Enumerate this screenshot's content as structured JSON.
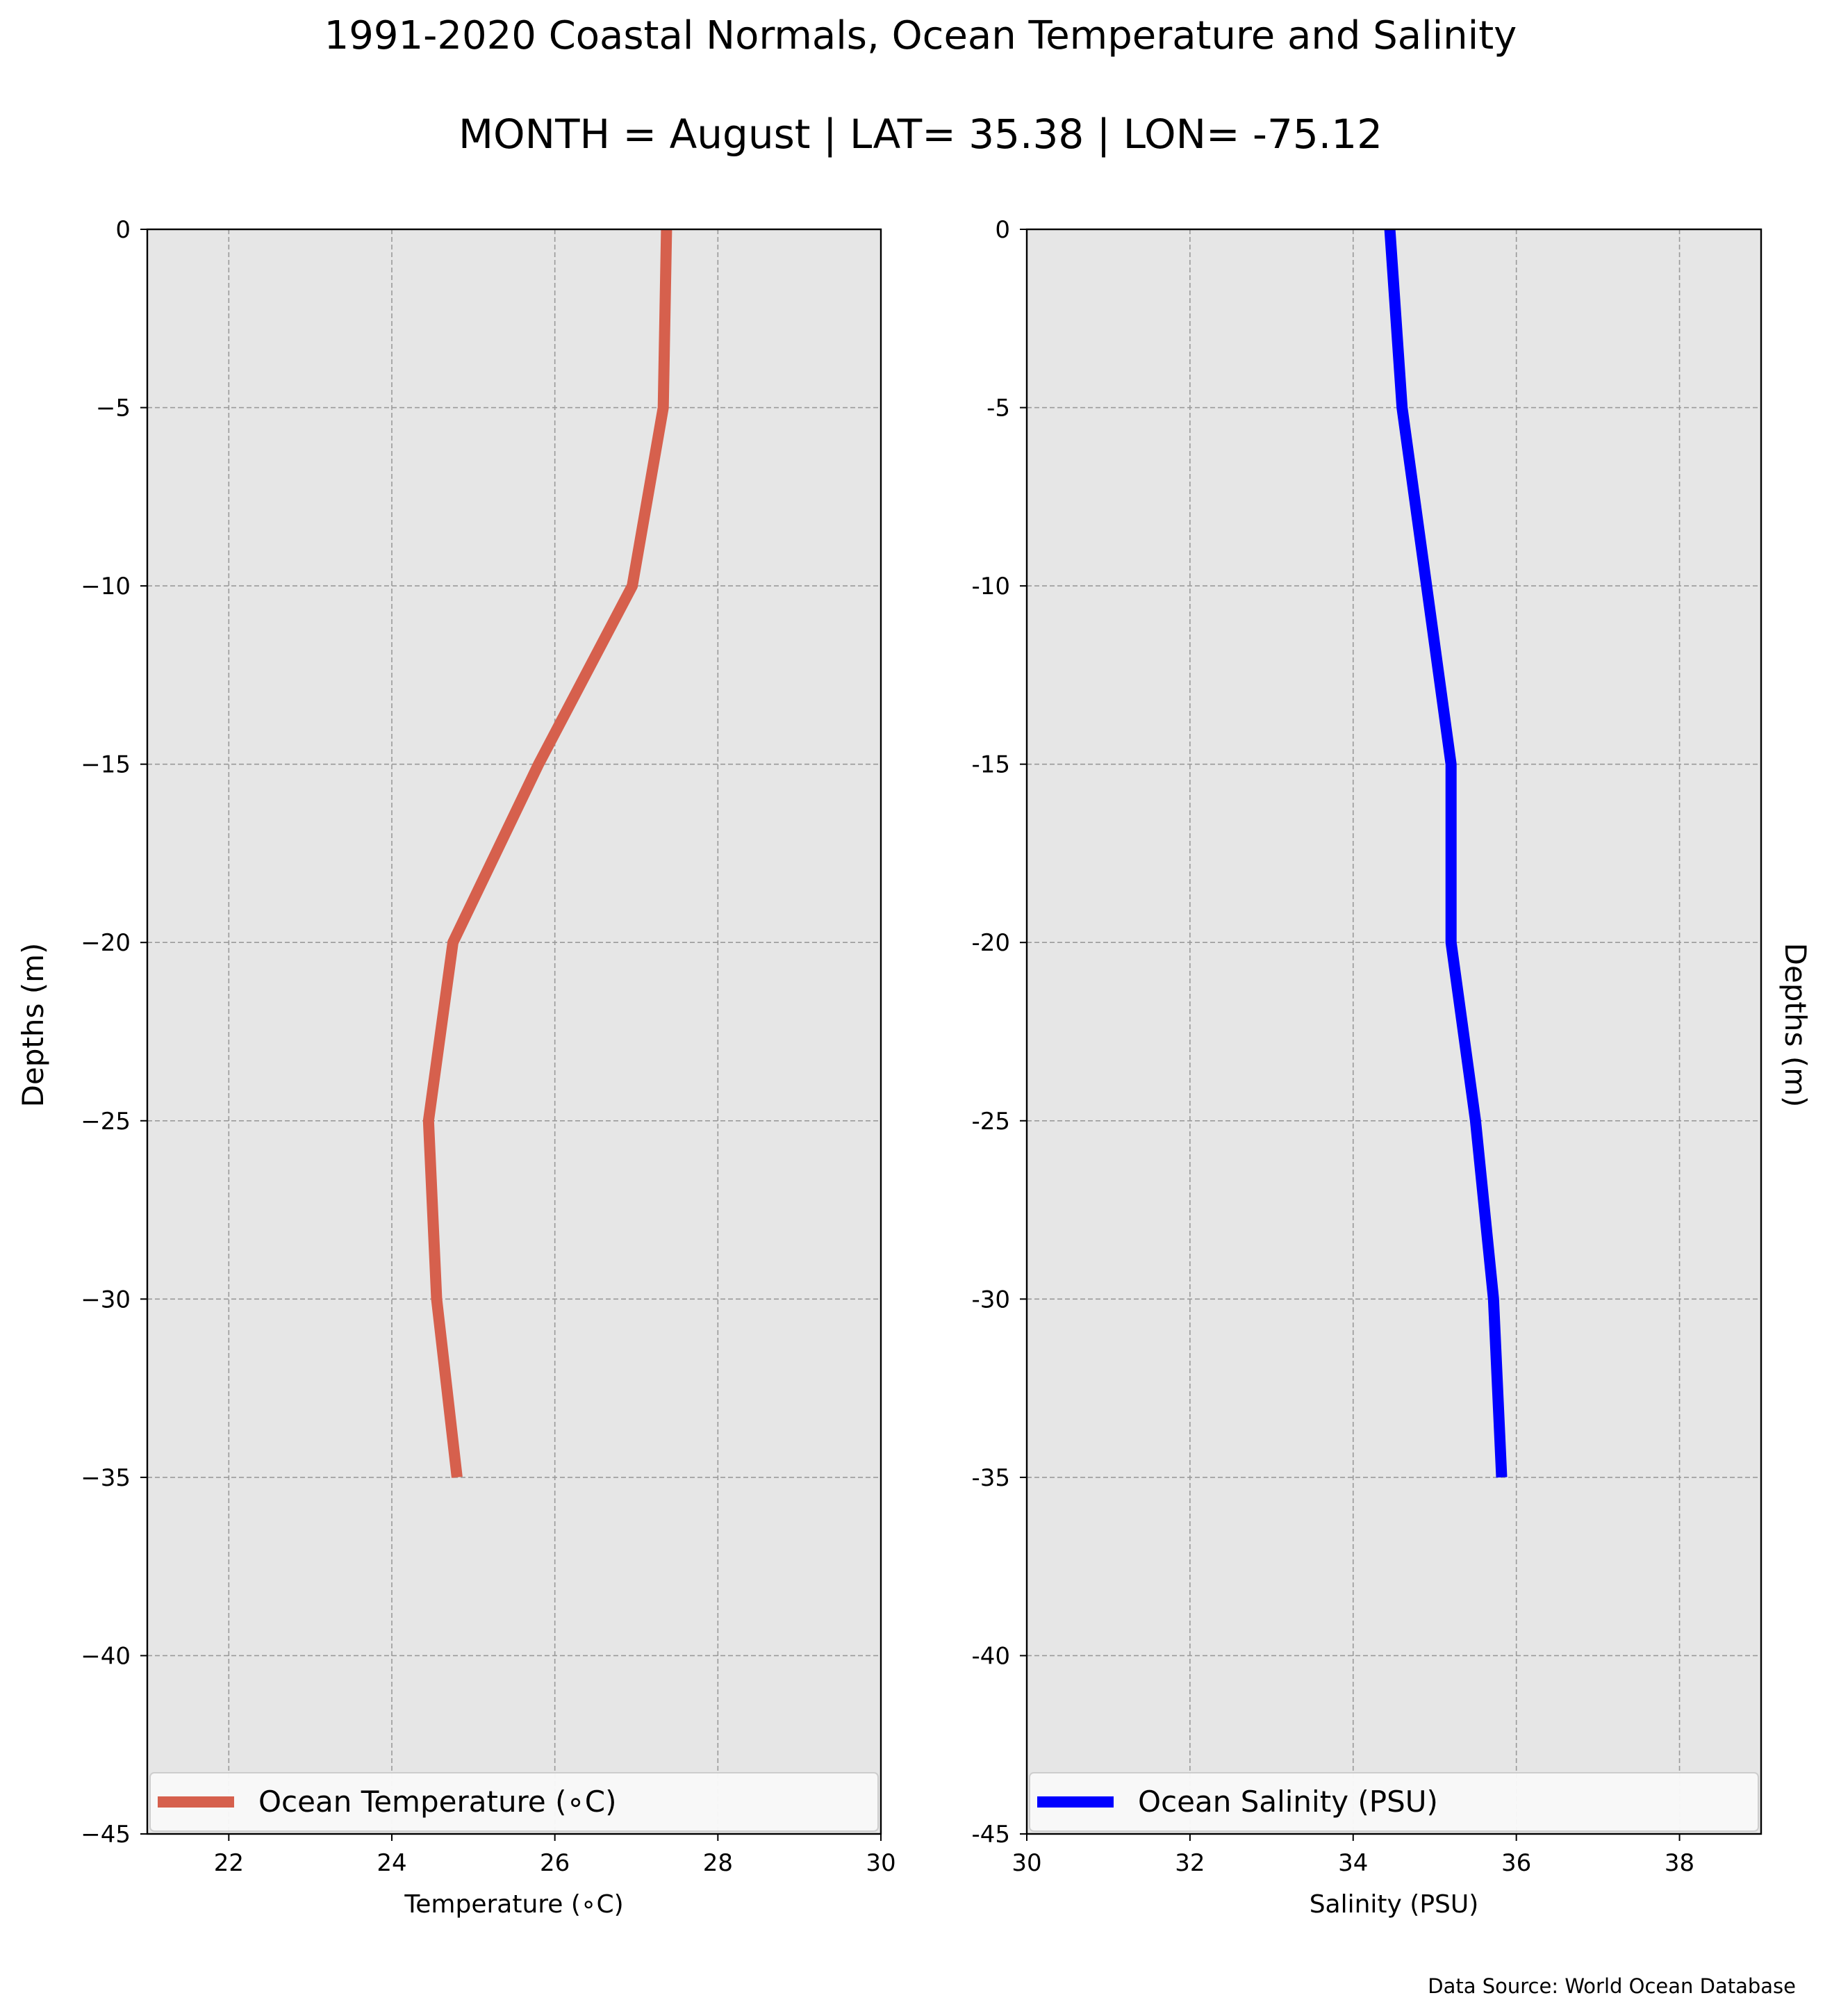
{
  "title": "1991-2020 Coastal Normals, Ocean Temperature and Salinity",
  "subtitle": "MONTH = August | LAT= 35.38 | LON= -75.12",
  "source": "Data Source: World Ocean Database",
  "chart_data": [
    {
      "type": "line",
      "xlabel": "Temperature ($^\\circ$C)",
      "xlabel_display": "Temperature (∘C)",
      "ylabel": "Depths (m)",
      "xlim": [
        21,
        30
      ],
      "ylim": [
        -45,
        0
      ],
      "xticks": [
        22,
        24,
        26,
        28,
        30
      ],
      "yticks": [
        0,
        -5,
        -10,
        -15,
        -20,
        -25,
        -30,
        -35,
        -40,
        -45
      ],
      "ytick_labels": [
        "0",
        "−5",
        "−10",
        "−15",
        "−20",
        "−25",
        "−30",
        "−35",
        "−40",
        "−45"
      ],
      "grid": true,
      "legend_position": "lower center",
      "series": [
        {
          "name": "Ocean Temperature ($^\\circ$C)",
          "display_name": "Ocean Temperature (∘C)",
          "color": "#d6604d",
          "x": [
            27.37,
            27.33,
            26.95,
            25.8,
            24.75,
            24.45,
            24.55,
            24.8
          ],
          "y": [
            0,
            -5,
            -10,
            -15,
            -20,
            -25,
            -30,
            -35
          ]
        }
      ]
    },
    {
      "type": "line",
      "xlabel": "Salinity (PSU)",
      "ylabel": "Depths (m)",
      "xlim": [
        30,
        39
      ],
      "ylim": [
        -45,
        0
      ],
      "xticks": [
        30,
        32,
        34,
        36,
        38
      ],
      "yticks": [
        0,
        -5,
        -10,
        -15,
        -20,
        -25,
        -30,
        -35,
        -40,
        -45
      ],
      "ytick_labels": [
        "0",
        "-5",
        "-10",
        "-15",
        "-20",
        "-25",
        "-30",
        "-35",
        "-40",
        "-45"
      ],
      "grid": true,
      "legend_position": "lower center",
      "series": [
        {
          "name": "Ocean Salinity (PSU)",
          "color": "#0000ff",
          "x": [
            34.45,
            34.6,
            34.9,
            35.2,
            35.2,
            35.5,
            35.72,
            35.82
          ],
          "y": [
            0,
            -5,
            -10,
            -15,
            -20,
            -25,
            -30,
            -35
          ]
        }
      ]
    }
  ]
}
